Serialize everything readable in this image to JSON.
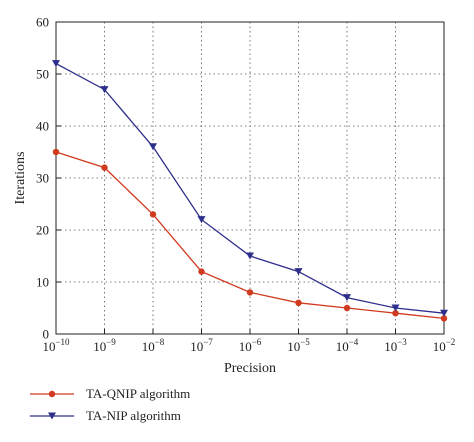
{
  "chart_data": {
    "type": "line",
    "xlabel": "Precision",
    "ylabel": "Iterations",
    "x_scale": "log",
    "x": [
      1e-10,
      1e-09,
      1e-08,
      1e-07,
      1e-06,
      1e-05,
      0.0001,
      0.001,
      0.01
    ],
    "x_tick_exponents": [
      "-10",
      "-9",
      "-8",
      "-7",
      "-6",
      "-5",
      "-4",
      "-3",
      "-2"
    ],
    "x_tick_base": "10",
    "ylim": [
      0,
      60
    ],
    "y_ticks": [
      0,
      10,
      20,
      30,
      40,
      50,
      60
    ],
    "grid": true,
    "legend_position": "bottom-left, below plot",
    "series": [
      {
        "name": "TA-QNIP algorithm",
        "color": "#d03a1f",
        "marker": "circle",
        "values": [
          35,
          32,
          23,
          12,
          8,
          6,
          5,
          4,
          3
        ]
      },
      {
        "name": "TA-NIP algorithm",
        "color": "#2e2e8c",
        "marker": "triangle-down",
        "values": [
          52,
          47,
          36,
          22,
          15,
          12,
          7,
          5,
          4
        ]
      }
    ]
  }
}
